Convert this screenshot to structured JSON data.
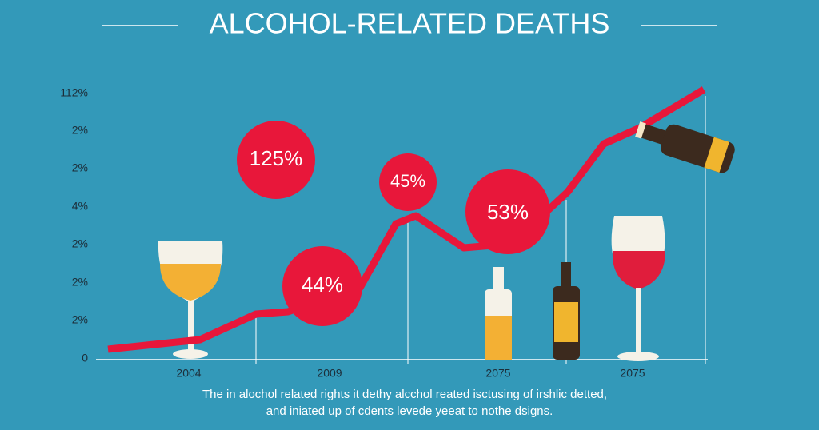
{
  "title": "ALCOHOL-RELATED DEATHS",
  "y_axis_labels": [
    "112%",
    "2%",
    "2%",
    "4%",
    "2%",
    "2%",
    "2%",
    "0"
  ],
  "x_axis_labels": [
    "2004",
    "2009",
    "2075",
    "2075"
  ],
  "bubbles": [
    "125%",
    "45%",
    "53%",
    "44%"
  ],
  "caption": [
    "The in alochol related rights it dethy alcchol reated isctusing of irshlic detted,",
    "and iniated up of cdents levede yeeat to nothe dsigns."
  ]
}
